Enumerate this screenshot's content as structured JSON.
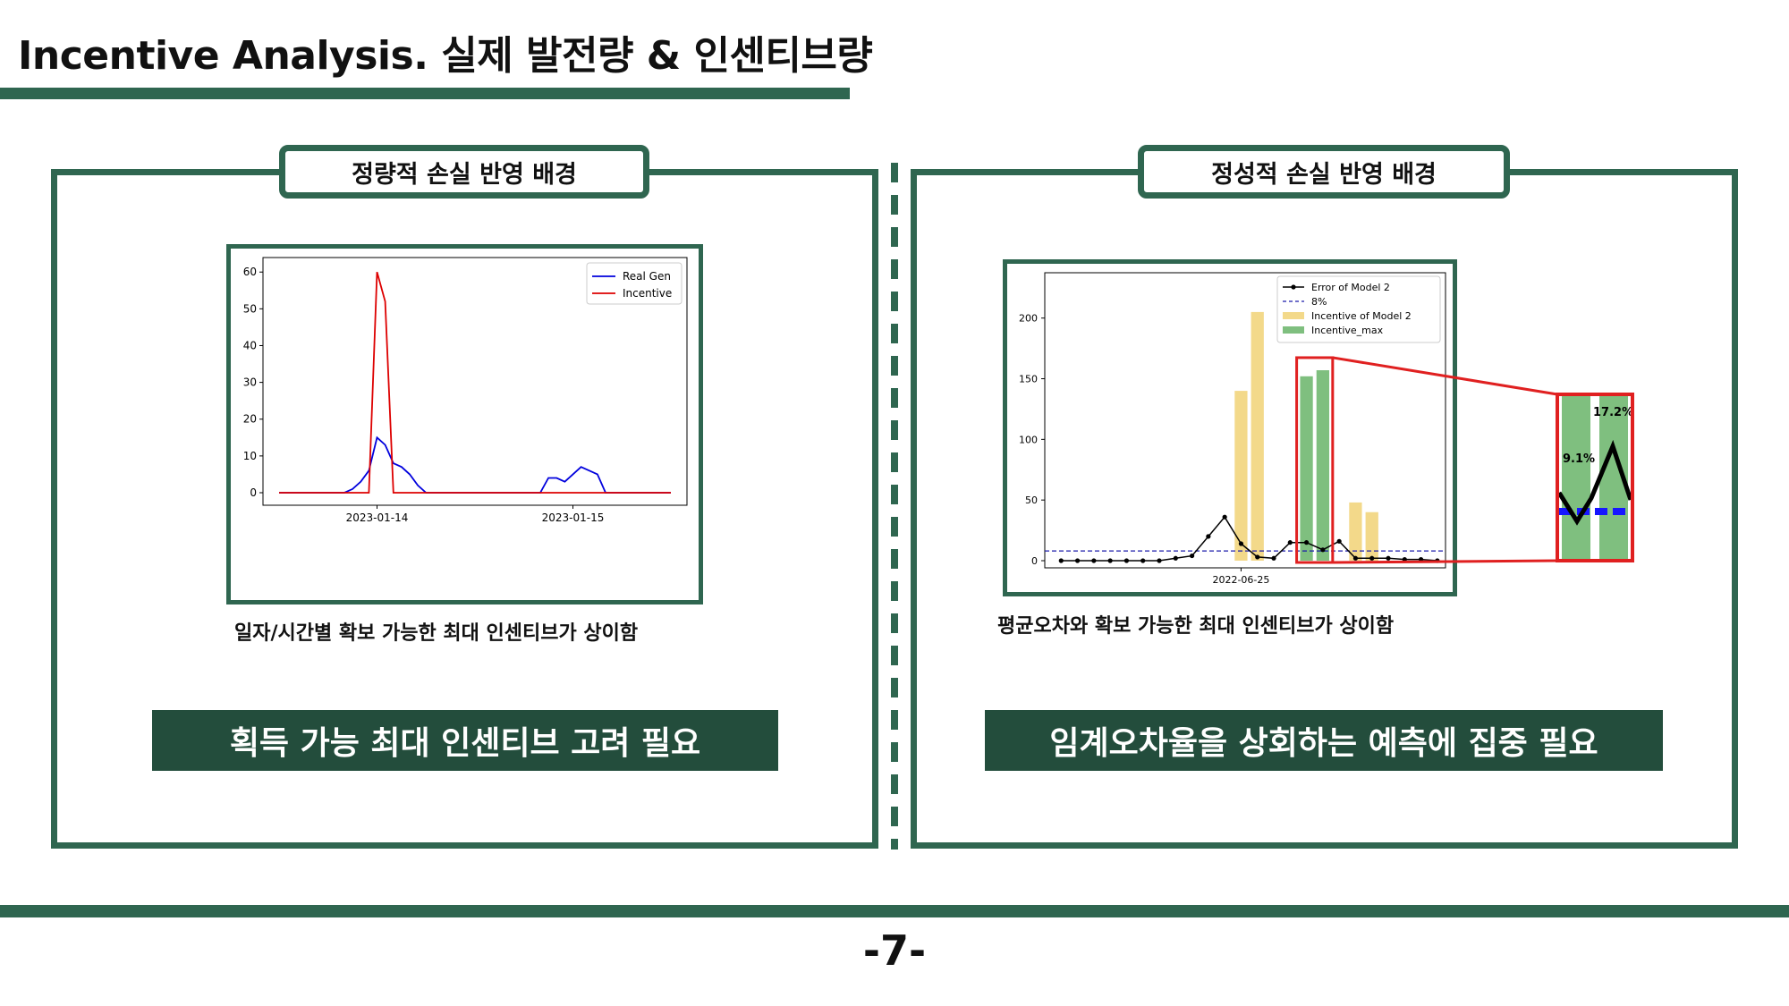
{
  "header": {
    "title": "Incentive Analysis. 실제 발전량 & 인센티브량"
  },
  "left_panel": {
    "tab_label": "정량적 손실 반영 배경",
    "caption": "일자/시간별 확보 가능한 최대 인센티브가 상이함",
    "banner": "획득 가능 최대 인센티브 고려 필요"
  },
  "right_panel": {
    "tab_label": "정성적 손실 반영 배경",
    "caption": "평균오차와 확보 가능한 최대 인센티브가 상이함",
    "banner": "임계오차율을 상회하는 예측에 집중 필요"
  },
  "page_number": "-7-",
  "colors": {
    "brand_green": "#2f6650",
    "banner_green": "#234d3c",
    "highlight_red": "#e02020"
  },
  "chart_data": [
    {
      "type": "line",
      "title": "",
      "xlabel": "",
      "ylabel": "",
      "ylim": [
        0,
        62
      ],
      "xlim": [
        0,
        48
      ],
      "yticks": [
        0,
        10,
        20,
        30,
        40,
        50,
        60
      ],
      "xtick_labels": [
        {
          "x": 12,
          "label": "2023-01-14"
        },
        {
          "x": 36,
          "label": "2023-01-15"
        }
      ],
      "legend": {
        "position": "top-right"
      },
      "series": [
        {
          "name": "Real Gen",
          "color": "#0000dd",
          "x": [
            0,
            1,
            2,
            3,
            4,
            5,
            6,
            7,
            8,
            9,
            10,
            11,
            12,
            13,
            14,
            15,
            16,
            17,
            18,
            19,
            20,
            21,
            22,
            23,
            24,
            25,
            26,
            27,
            28,
            29,
            30,
            31,
            32,
            33,
            34,
            35,
            36,
            37,
            38,
            39,
            40,
            41,
            42,
            43,
            44,
            45,
            46,
            47,
            48
          ],
          "y": [
            0,
            0,
            0,
            0,
            0,
            0,
            0,
            0,
            0,
            1,
            3,
            6,
            15,
            13,
            8,
            7,
            5,
            2,
            0,
            0,
            0,
            0,
            0,
            0,
            0,
            0,
            0,
            0,
            0,
            0,
            0,
            0,
            0,
            4,
            4,
            3,
            5,
            7,
            6,
            5,
            0,
            0,
            0,
            0,
            0,
            0,
            0,
            0,
            0
          ]
        },
        {
          "name": "Incentive",
          "color": "#dd0000",
          "x": [
            0,
            1,
            2,
            3,
            4,
            5,
            6,
            7,
            8,
            9,
            10,
            11,
            12,
            13,
            14,
            15,
            16,
            17,
            18,
            19,
            20,
            21,
            22,
            23,
            24,
            25,
            26,
            27,
            28,
            29,
            30,
            31,
            32,
            33,
            34,
            35,
            36,
            37,
            38,
            39,
            40,
            41,
            42,
            43,
            44,
            45,
            46,
            47,
            48
          ],
          "y": [
            0,
            0,
            0,
            0,
            0,
            0,
            0,
            0,
            0,
            0,
            0,
            0,
            60,
            52,
            0,
            0,
            0,
            0,
            0,
            0,
            0,
            0,
            0,
            0,
            0,
            0,
            0,
            0,
            0,
            0,
            0,
            0,
            0,
            0,
            0,
            0,
            0,
            0,
            0,
            0,
            0,
            0,
            0,
            0,
            0,
            0,
            0,
            0,
            0
          ]
        }
      ]
    },
    {
      "type": "bar",
      "title": "",
      "xlabel": "",
      "ylabel": "",
      "ylim": [
        0,
        230
      ],
      "xlim": [
        0,
        24.5
      ],
      "yticks": [
        0,
        50,
        100,
        150,
        200
      ],
      "xtick_labels": [
        {
          "x": 12,
          "label": "2022-06-25"
        }
      ],
      "legend": {
        "position": "top-right"
      },
      "threshold": {
        "name": "8%",
        "value": 8,
        "color": "#1a1aaa"
      },
      "series": [
        {
          "name": "Error of Model 2",
          "kind": "line",
          "color": "#000000",
          "x": [
            1,
            2,
            3,
            4,
            5,
            6,
            7,
            8,
            9,
            10,
            11,
            12,
            13,
            14,
            15,
            16,
            17,
            18,
            19,
            20,
            21,
            22,
            23,
            24
          ],
          "y": [
            0,
            0,
            0,
            0,
            0,
            0,
            0,
            2,
            4,
            20,
            36,
            14,
            3,
            2,
            15,
            15,
            9,
            16,
            2,
            2,
            2,
            1,
            1,
            0
          ]
        },
        {
          "name": "Incentive of Model 2",
          "kind": "bar",
          "color": "#f3d98a",
          "x": [
            12,
            13,
            19,
            20
          ],
          "y": [
            140,
            205,
            48,
            40
          ]
        },
        {
          "name": "Incentive_max",
          "kind": "bar",
          "color": "#7fbf7f",
          "x": [
            16,
            17
          ],
          "y": [
            152,
            157
          ]
        }
      ],
      "zoom_inset": {
        "labels": [
          "9.1%",
          "17.2%"
        ]
      }
    }
  ]
}
